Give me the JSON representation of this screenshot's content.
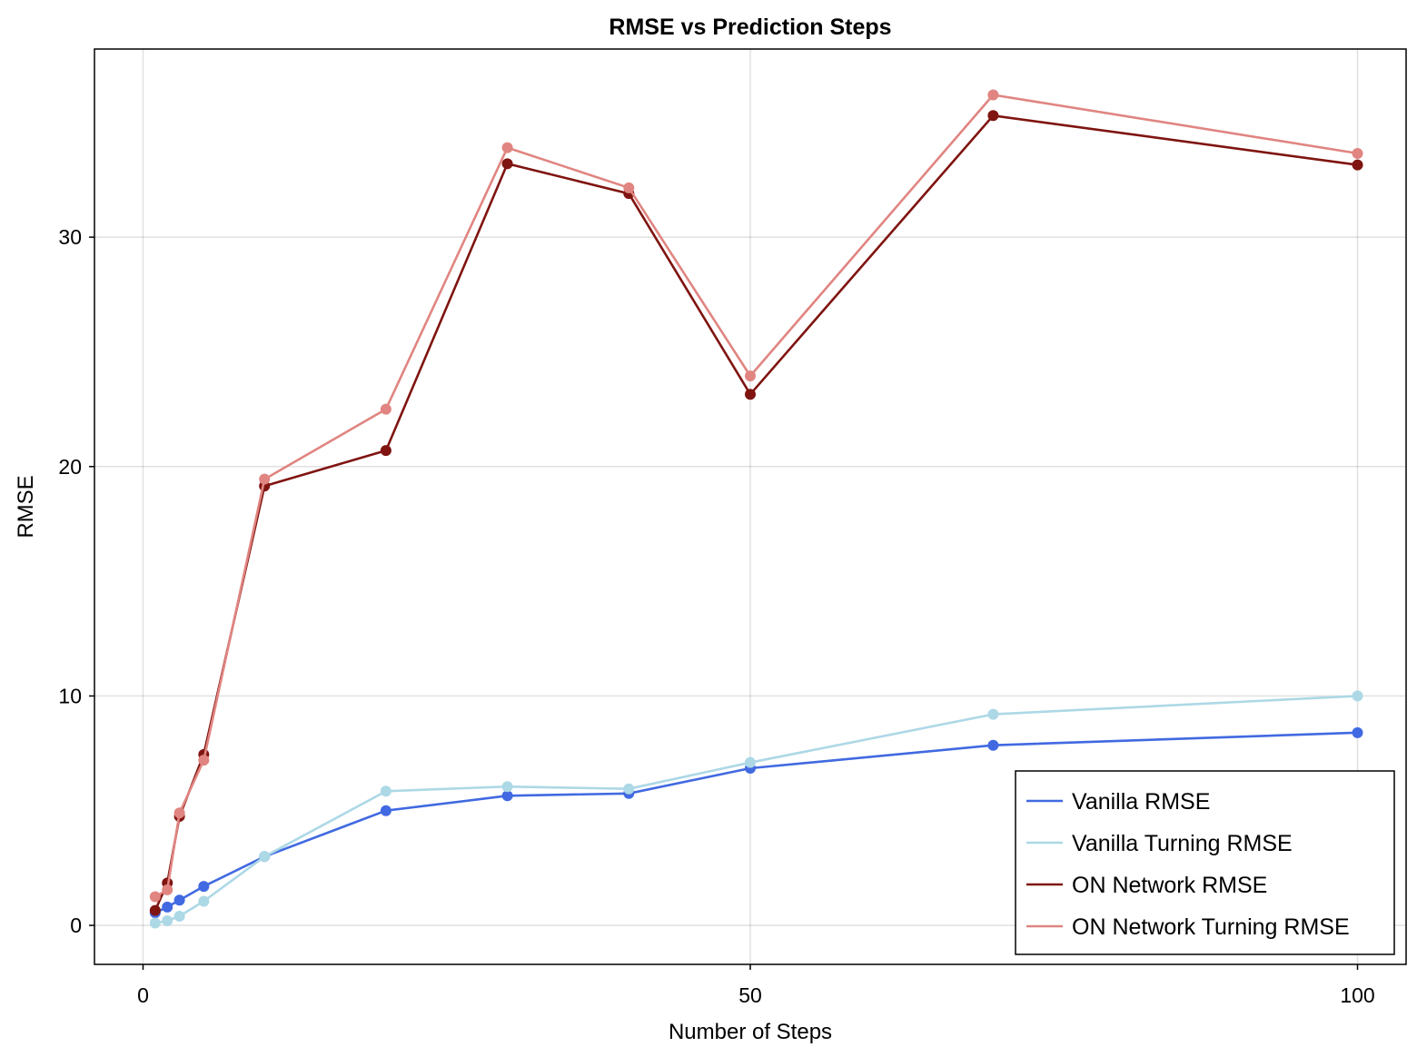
{
  "chart_data": {
    "type": "line",
    "title": "RMSE vs Prediction Steps",
    "xlabel": "Number of Steps",
    "ylabel": "RMSE",
    "xlim": [
      -4,
      104
    ],
    "ylim": [
      -1.7,
      38.2
    ],
    "xticks": [
      0,
      50,
      100
    ],
    "yticks": [
      0,
      10,
      20,
      30
    ],
    "grid": true,
    "legend_position": "bottom-right",
    "x": [
      1,
      2,
      3,
      5,
      10,
      20,
      30,
      40,
      50,
      70,
      100
    ],
    "series": [
      {
        "name": "Vanilla RMSE",
        "color": "#4169e1",
        "values": [
          0.55,
          0.8,
          1.1,
          1.7,
          3.0,
          5.0,
          5.65,
          5.75,
          6.85,
          7.85,
          8.4
        ]
      },
      {
        "name": "Vanilla Turning RMSE",
        "color": "#add8e6",
        "values": [
          0.1,
          0.2,
          0.4,
          1.05,
          3.0,
          5.85,
          6.05,
          5.95,
          7.1,
          9.2,
          10.0
        ]
      },
      {
        "name": "ON Network RMSE",
        "color": "#7f1410",
        "values": [
          0.65,
          1.85,
          4.75,
          7.45,
          19.15,
          20.7,
          33.2,
          31.9,
          23.15,
          35.3,
          33.15
        ]
      },
      {
        "name": "ON Network Turning RMSE",
        "color": "#e08581",
        "values": [
          1.25,
          1.55,
          4.9,
          7.2,
          19.45,
          22.5,
          33.9,
          32.15,
          23.95,
          36.2,
          33.65
        ]
      }
    ]
  }
}
